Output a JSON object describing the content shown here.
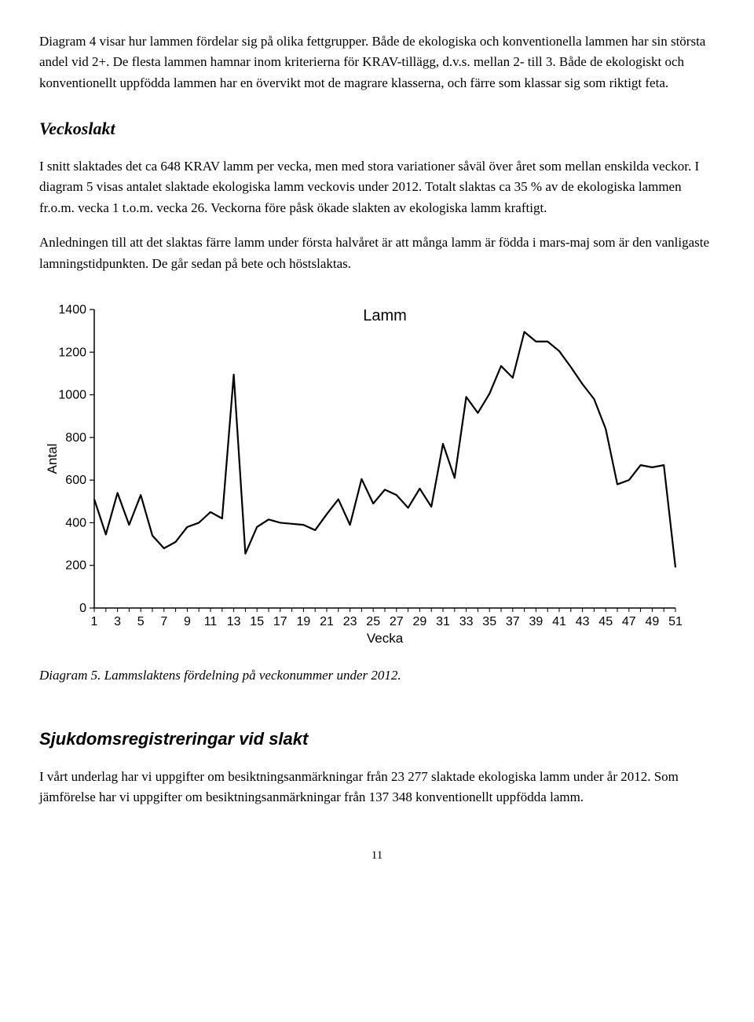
{
  "para1": "Diagram 4 visar hur lammen fördelar sig på olika fettgrupper. Både de ekologiska och konventionella lammen har sin största andel vid 2+. De flesta lammen hamnar inom kriterierna för KRAV-tillägg, d.v.s. mellan 2- till 3. Både de ekologiskt och konventionellt uppfödda lammen har en övervikt mot de magrare klasserna, och färre som klassar sig som riktigt feta.",
  "heading1": "Veckoslakt",
  "para2": "I snitt slaktades det ca 648 KRAV lamm per vecka, men med stora variationer såväl över året som mellan enskilda veckor. I diagram 5 visas antalet slaktade ekologiska lamm veckovis under 2012. Totalt slaktas ca 35 % av de ekologiska lammen fr.o.m. vecka 1 t.o.m. vecka 26. Veckorna före påsk ökade slakten av ekologiska lamm kraftigt.",
  "para3": "Anledningen till att det slaktas färre lamm under första halvåret är att många lamm är födda i mars-maj som är den vanligaste lamningstidpunkten. De går sedan på bete och höstslaktas.",
  "chart": {
    "type": "line",
    "title": "Lamm",
    "title_fontsize": 20,
    "xlabel": "Vecka",
    "ylabel": "Antal",
    "label_fontsize": 17,
    "tick_fontsize": 16,
    "ylim": [
      0,
      1400
    ],
    "ytick_step": 200,
    "xlim": [
      1,
      51
    ],
    "xticks": [
      1,
      3,
      5,
      7,
      9,
      11,
      13,
      15,
      17,
      19,
      21,
      23,
      25,
      27,
      29,
      31,
      33,
      35,
      37,
      39,
      41,
      43,
      45,
      47,
      49,
      51
    ],
    "line_color": "#000000",
    "line_width": 2.2,
    "axis_color": "#000000",
    "background_color": "#ffffff",
    "values": [
      510,
      345,
      540,
      390,
      530,
      340,
      280,
      310,
      380,
      400,
      450,
      420,
      1095,
      255,
      380,
      415,
      400,
      395,
      390,
      365,
      440,
      510,
      390,
      605,
      490,
      555,
      530,
      470,
      560,
      475,
      770,
      610,
      990,
      915,
      1005,
      1135,
      1080,
      1295,
      1250,
      1250,
      1205,
      1130,
      1050,
      980,
      840,
      580,
      600,
      670,
      660,
      670,
      190
    ]
  },
  "caption": "Diagram 5. Lammslaktens fördelning på veckonummer under 2012.",
  "heading2": "Sjukdomsregistreringar vid slakt",
  "para4": "I vårt underlag har vi uppgifter om besiktningsanmärkningar från 23 277 slaktade ekologiska lamm under år 2012. Som jämförelse har vi uppgifter om besiktningsanmärkningar från 137 348 konventionellt uppfödda lamm.",
  "page_number": "11"
}
